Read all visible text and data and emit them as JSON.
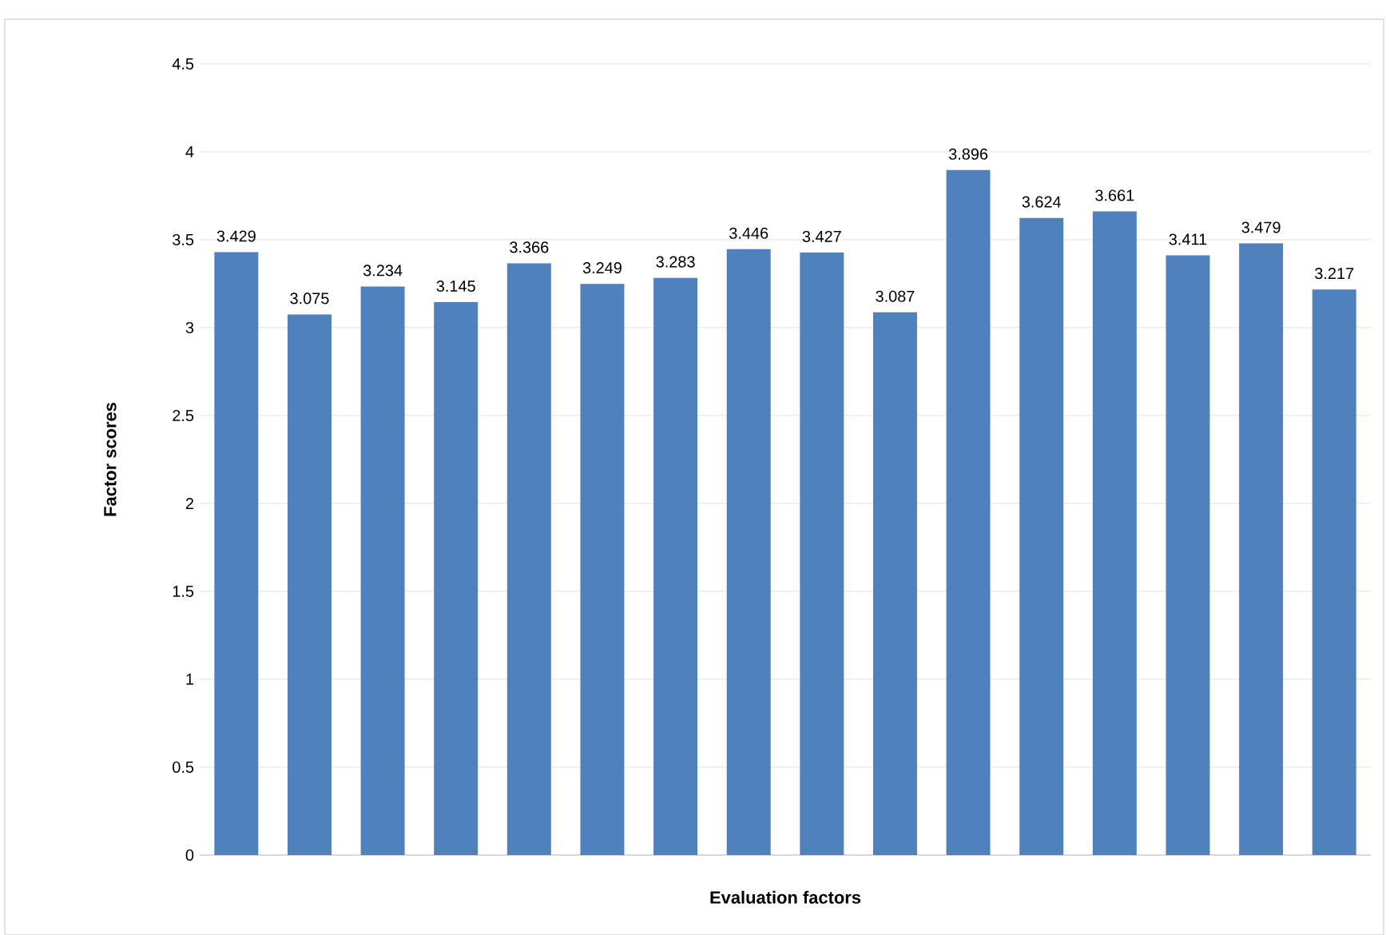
{
  "chart_data": {
    "type": "bar",
    "xlabel": "Evaluation factors",
    "ylabel": "Factor scores",
    "categories": [
      null,
      null,
      null,
      null,
      null,
      null,
      null,
      null,
      null,
      null,
      null,
      null,
      null,
      null,
      null,
      null
    ],
    "values": [
      3.429,
      3.075,
      3.234,
      3.145,
      3.366,
      3.249,
      3.283,
      3.446,
      3.427,
      3.087,
      3.896,
      3.624,
      3.661,
      3.411,
      3.479,
      3.217
    ],
    "color": "#4f81bd",
    "ylim": [
      0,
      4.5
    ],
    "yticks": [
      0,
      0.5,
      1,
      1.5,
      2,
      2.5,
      3,
      3.5,
      4,
      4.5
    ],
    "grid": "y",
    "data_labels": true
  }
}
